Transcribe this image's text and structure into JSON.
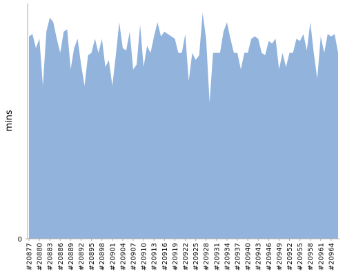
{
  "chart_data": {
    "type": "area",
    "ylabel": "mins",
    "color": "#92b3dc",
    "categories": [
      "#20877",
      null,
      null,
      "#20880",
      null,
      null,
      "#20883",
      null,
      null,
      "#20886",
      null,
      null,
      "#20889",
      null,
      null,
      "#20892",
      null,
      null,
      "#20895",
      null,
      null,
      "#20898",
      null,
      null,
      "#20901",
      null,
      null,
      "#20904",
      null,
      null,
      "#20907",
      null,
      null,
      "#20910",
      null,
      null,
      "#20913",
      null,
      null,
      "#20916",
      null,
      null,
      "#20919",
      null,
      null,
      "#20922",
      null,
      null,
      "#20925",
      null,
      null,
      "#20928",
      null,
      null,
      "#20931",
      null,
      null,
      "#20934",
      null,
      null,
      "#20937",
      null,
      null,
      "#20940",
      null,
      null,
      "#20943",
      null,
      null,
      "#20946",
      null,
      null,
      "#20949",
      null,
      null,
      "#20952",
      null,
      null,
      "#20955",
      null,
      null,
      "#20958",
      null,
      null,
      "#20961",
      null,
      null,
      "#20964",
      null,
      null
    ],
    "values": [
      86,
      87,
      81,
      85,
      65,
      88,
      94,
      92,
      85,
      79,
      88,
      89,
      72,
      81,
      85,
      74,
      65,
      78,
      79,
      85,
      79,
      85,
      73,
      76,
      65,
      78,
      92,
      81,
      80,
      88,
      72,
      74,
      91,
      73,
      82,
      79,
      86,
      92,
      86,
      88,
      87,
      86,
      85,
      79,
      79,
      87,
      67,
      79,
      76,
      78,
      96,
      85,
      58,
      79,
      79,
      79,
      88,
      92,
      85,
      79,
      79,
      72,
      79,
      79,
      85,
      86,
      85,
      79,
      78,
      84,
      83,
      85,
      72,
      79,
      73,
      79,
      79,
      85,
      84,
      87,
      80,
      92,
      79,
      68,
      86,
      79,
      87,
      86,
      87,
      79
    ],
    "ylim": [
      0,
      100
    ],
    "yticks": [
      0
    ]
  }
}
